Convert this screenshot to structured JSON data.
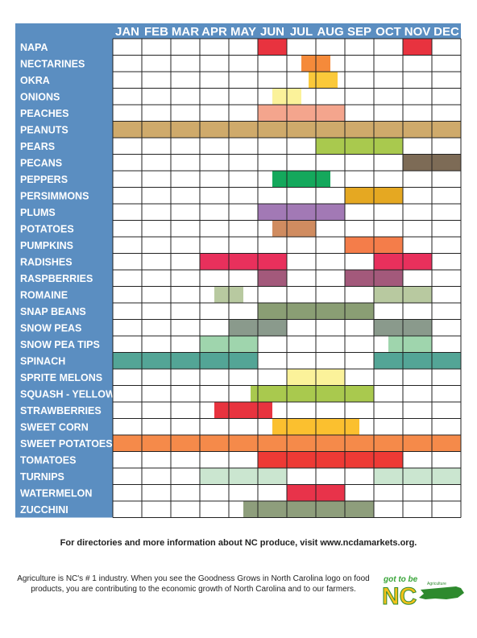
{
  "chart_data": {
    "type": "table",
    "months": [
      "JAN",
      "FEB",
      "MAR",
      "APR",
      "MAY",
      "JUN",
      "JUL",
      "AUG",
      "SEP",
      "OCT",
      "NOV",
      "DEC"
    ],
    "crops": [
      {
        "name": "NAPA",
        "color": "#e8333f",
        "ranges": [
          [
            5,
            6
          ],
          [
            10,
            11
          ]
        ]
      },
      {
        "name": "NECTARINES",
        "color": "#f58a3a",
        "ranges": [
          [
            6.5,
            7.5
          ]
        ]
      },
      {
        "name": "OKRA",
        "color": "#fbc93a",
        "ranges": [
          [
            6.75,
            7.75
          ]
        ]
      },
      {
        "name": "ONIONS",
        "color": "#fbf29a",
        "ranges": [
          [
            5.5,
            6.5
          ]
        ]
      },
      {
        "name": "PEACHES",
        "color": "#f4a58d",
        "ranges": [
          [
            5,
            8
          ]
        ]
      },
      {
        "name": "PEANUTS",
        "color": "#cfaa6b",
        "ranges": [
          [
            0,
            12
          ]
        ]
      },
      {
        "name": "PEARS",
        "color": "#a9c94e",
        "ranges": [
          [
            7,
            10
          ]
        ]
      },
      {
        "name": "PECANS",
        "color": "#7d6b56",
        "ranges": [
          [
            10,
            12
          ]
        ]
      },
      {
        "name": "PEPPERS",
        "color": "#14a85c",
        "ranges": [
          [
            5.5,
            7.5
          ]
        ]
      },
      {
        "name": "PERSIMMONS",
        "color": "#e5a822",
        "ranges": [
          [
            8,
            10
          ]
        ]
      },
      {
        "name": "PLUMS",
        "color": "#a279b5",
        "ranges": [
          [
            5,
            8
          ]
        ]
      },
      {
        "name": "POTATOES",
        "color": "#d08c60",
        "ranges": [
          [
            5.5,
            7
          ]
        ]
      },
      {
        "name": "PUMPKINS",
        "color": "#f47d4a",
        "ranges": [
          [
            8,
            10
          ]
        ]
      },
      {
        "name": "RADISHES",
        "color": "#e8305c",
        "ranges": [
          [
            3,
            6
          ],
          [
            9,
            11
          ]
        ]
      },
      {
        "name": "RASPBERRIES",
        "color": "#a3597b",
        "ranges": [
          [
            5,
            6
          ],
          [
            8,
            10
          ]
        ]
      },
      {
        "name": "ROMAINE",
        "color": "#b8c9a0",
        "ranges": [
          [
            3.5,
            4.5
          ],
          [
            9,
            11
          ]
        ]
      },
      {
        "name": "SNAP BEANS",
        "color": "#8a9e74",
        "ranges": [
          [
            5,
            9
          ]
        ]
      },
      {
        "name": "SNOW PEAS",
        "color": "#8a9a8c",
        "ranges": [
          [
            4,
            6
          ],
          [
            9,
            11
          ]
        ]
      },
      {
        "name": "SNOW PEA TIPS",
        "color": "#9fd5ad",
        "ranges": [
          [
            3,
            5
          ],
          [
            9.5,
            11
          ]
        ]
      },
      {
        "name": "SPINACH",
        "color": "#53a596",
        "ranges": [
          [
            0,
            5
          ],
          [
            9,
            12
          ]
        ]
      },
      {
        "name": "SPRITE MELONS",
        "color": "#fbf29a",
        "ranges": [
          [
            6,
            8
          ]
        ]
      },
      {
        "name": "SQUASH - YELLOW",
        "color": "#a9c94e",
        "ranges": [
          [
            4.75,
            9
          ]
        ]
      },
      {
        "name": "STRAWBERRIES",
        "color": "#e8333f",
        "ranges": [
          [
            3.5,
            5.5
          ]
        ]
      },
      {
        "name": "SWEET CORN",
        "color": "#fbc02f",
        "ranges": [
          [
            5.5,
            8.5
          ]
        ]
      },
      {
        "name": "SWEET POTATOES",
        "color": "#f58a4a",
        "ranges": [
          [
            0,
            12
          ]
        ]
      },
      {
        "name": "TOMATOES",
        "color": "#ee3a35",
        "ranges": [
          [
            5,
            10
          ]
        ]
      },
      {
        "name": "TURNIPS",
        "color": "#cbe6d0",
        "ranges": [
          [
            3,
            6
          ],
          [
            9,
            12
          ]
        ]
      },
      {
        "name": "WATERMELON",
        "color": "#e8334a",
        "ranges": [
          [
            6,
            8
          ]
        ]
      },
      {
        "name": "ZUCCHINI",
        "color": "#8e9e7c",
        "ranges": [
          [
            4.5,
            9
          ]
        ]
      }
    ]
  },
  "colors": {
    "header_bg": "#5b8ec1",
    "label_bg": "#5b8ec1",
    "grid_line": "#222222"
  },
  "footer": {
    "link_text": "For directories and more information about NC produce, visit www.ncdamarkets.org.",
    "description": "Agriculture is NC's # 1 industry.  When you see the Goodness Grows in North Carolina logo on food products, you are contributing to the economic growth of North Carolina and to our farmers."
  },
  "logo": {
    "tagline": "got to be",
    "brand": "NC",
    "small_text": "Agriculture"
  }
}
